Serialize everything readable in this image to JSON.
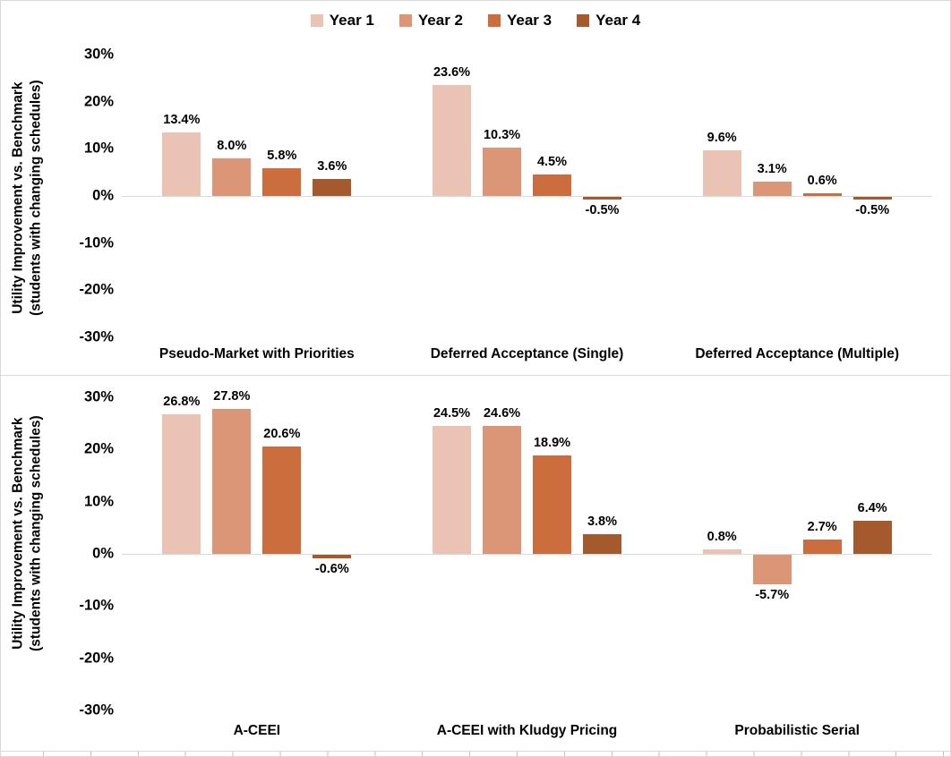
{
  "legend": {
    "items": [
      {
        "label": "Year 1",
        "color": "#EAC3B5"
      },
      {
        "label": "Year 2",
        "color": "#DB9678"
      },
      {
        "label": "Year 3",
        "color": "#CB6D3C"
      },
      {
        "label": "Year 4",
        "color": "#A55A2E"
      }
    ]
  },
  "y_axis": {
    "title_line1": "Utility Improvement vs. Benchmark",
    "title_line2": "(students with changing schedules)",
    "tick_labels": [
      "30%",
      "20%",
      "10%",
      "0%",
      "-10%",
      "-20%",
      "-30%"
    ],
    "max": 30,
    "min": -30
  },
  "chart_data": [
    {
      "type": "bar",
      "panel": "top",
      "title": "",
      "categories": [
        "Pseudo-Market with Priorities",
        "Deferred Acceptance (Single)",
        "Deferred Acceptance (Multiple)"
      ],
      "series": [
        {
          "name": "Year 1",
          "color": "#EAC3B5",
          "values": [
            13.4,
            23.6,
            9.6
          ]
        },
        {
          "name": "Year 2",
          "color": "#DB9678",
          "values": [
            8.0,
            10.3,
            3.1
          ]
        },
        {
          "name": "Year 3",
          "color": "#CB6D3C",
          "values": [
            5.8,
            4.5,
            0.6
          ]
        },
        {
          "name": "Year 4",
          "color": "#A55A2E",
          "values": [
            3.6,
            -0.5,
            -0.5
          ]
        }
      ],
      "data_labels": [
        "13.4%",
        "8.0%",
        "5.8%",
        "3.6%",
        "23.6%",
        "10.3%",
        "4.5%",
        "-0.5%",
        "9.6%",
        "3.1%",
        "0.6%",
        "-0.5%"
      ],
      "xlabel": "",
      "ylabel": "Utility Improvement vs. Benchmark (students with changing schedules)",
      "ylim": [
        -30,
        30
      ],
      "grid": false,
      "legend_position": "top"
    },
    {
      "type": "bar",
      "panel": "bottom",
      "title": "",
      "categories": [
        "A-CEEI",
        "A-CEEI with Kludgy Pricing",
        "Probabilistic Serial"
      ],
      "series": [
        {
          "name": "Year 1",
          "color": "#EAC3B5",
          "values": [
            26.8,
            24.5,
            0.8
          ]
        },
        {
          "name": "Year 2",
          "color": "#DB9678",
          "values": [
            27.8,
            24.6,
            -5.7
          ]
        },
        {
          "name": "Year 3",
          "color": "#CB6D3C",
          "values": [
            20.6,
            18.9,
            2.7
          ]
        },
        {
          "name": "Year 4",
          "color": "#A55A2E",
          "values": [
            -0.6,
            3.8,
            6.4
          ]
        }
      ],
      "data_labels": [
        "26.8%",
        "27.8%",
        "20.6%",
        "-0.6%",
        "24.5%",
        "24.6%",
        "18.9%",
        "3.8%",
        "0.8%",
        "-5.7%",
        "2.7%",
        "6.4%"
      ],
      "xlabel": "",
      "ylabel": "Utility Improvement vs. Benchmark (students with changing schedules)",
      "ylim": [
        -30,
        30
      ],
      "grid": false,
      "legend_position": "top"
    }
  ]
}
